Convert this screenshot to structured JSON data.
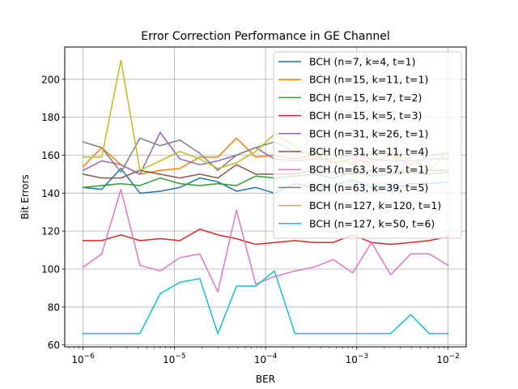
{
  "chart_data": {
    "type": "line",
    "title": "Error Correction Performance in GE Channel",
    "xlabel": "BER",
    "ylabel": "Bit Errors",
    "xscale": "log",
    "xlim": [
      6.3e-07,
      0.0158
    ],
    "ylim": [
      59,
      217
    ],
    "grid": true,
    "legend_position": "top-right",
    "x": [
      1e-06,
      1.6e-06,
      2.6e-06,
      4.2e-06,
      7e-06,
      1.15e-05,
      1.9e-05,
      3e-05,
      4.8e-05,
      7.8e-05,
      0.000125,
      0.00021,
      0.00034,
      0.00055,
      0.0009,
      0.00145,
      0.00235,
      0.0039,
      0.0062,
      0.01
    ],
    "x_ticks": [
      {
        "value": 1e-06,
        "base": "10",
        "exp": "−6"
      },
      {
        "value": 1e-05,
        "base": "10",
        "exp": "−5"
      },
      {
        "value": 0.0001,
        "base": "10",
        "exp": "−4"
      },
      {
        "value": 0.001,
        "base": "10",
        "exp": "−3"
      },
      {
        "value": 0.01,
        "base": "10",
        "exp": "−2"
      }
    ],
    "y_ticks": [
      "60",
      "80",
      "100",
      "120",
      "140",
      "160",
      "180",
      "200"
    ],
    "series": [
      {
        "name": "BCH (n=7, k=4, t=1)",
        "color": "#1f77b4",
        "values": [
          143,
          142,
          153,
          140,
          141,
          143,
          148,
          146,
          141,
          143,
          140,
          145,
          143,
          144,
          147,
          143,
          142,
          145,
          145,
          146
        ]
      },
      {
        "name": "BCH (n=15, k=11, t=1)",
        "color": "#ff7f0e",
        "values": [
          154,
          164,
          155,
          150,
          152,
          153,
          159,
          159,
          169,
          159,
          160,
          158,
          160,
          156,
          158,
          156,
          160,
          155,
          160,
          161
        ]
      },
      {
        "name": "BCH (n=15, k=7, t=2)",
        "color": "#2ca02c",
        "values": [
          143,
          144,
          145,
          144,
          148,
          145,
          144,
          145,
          144,
          149,
          148,
          149,
          150,
          148,
          151,
          149,
          150,
          151,
          150,
          151
        ]
      },
      {
        "name": "BCH (n=15, k=5, t=3)",
        "color": "#d62728",
        "values": [
          115,
          115,
          118,
          115,
          116,
          115,
          121,
          118,
          116,
          113,
          114,
          115,
          114,
          114,
          118,
          114,
          113,
          114,
          115,
          117
        ]
      },
      {
        "name": "BCH (n=31, k=26, t=1)",
        "color": "#9467bd",
        "values": [
          152,
          157,
          155,
          150,
          172,
          158,
          155,
          157,
          160,
          164,
          158,
          157,
          158,
          158,
          160,
          158,
          157,
          157,
          158,
          158
        ]
      },
      {
        "name": "BCH (n=31, k=11, t=4)",
        "color": "#8c564b",
        "values": [
          150,
          148,
          148,
          152,
          150,
          148,
          150,
          148,
          155,
          150,
          150,
          150,
          152,
          151,
          150,
          152,
          151,
          152,
          152,
          152
        ]
      },
      {
        "name": "BCH (n=63, k=57, t=1)",
        "color": "#e377c2",
        "values": [
          101,
          108,
          142,
          102,
          99,
          106,
          108,
          88,
          131,
          92,
          96,
          99,
          101,
          105,
          98,
          114,
          97,
          108,
          108,
          102
        ]
      },
      {
        "name": "BCH (n=63, k=39, t=5)",
        "color": "#7f7f7f",
        "values": [
          167,
          164,
          151,
          169,
          165,
          168,
          161,
          152,
          160,
          164,
          167,
          162,
          161,
          160,
          160,
          161,
          161,
          160,
          160,
          161
        ]
      },
      {
        "name": "BCH (n=127, k=120, t=1)",
        "color": "#bcbd22",
        "values": [
          159,
          159,
          210,
          152,
          157,
          162,
          158,
          153,
          156,
          162,
          171,
          165,
          159,
          160,
          155,
          162,
          160,
          158,
          152,
          162
        ]
      },
      {
        "name": "BCH (n=127, k=50, t=6)",
        "color": "#17becf",
        "values": [
          66,
          66,
          66,
          66,
          87,
          93,
          95,
          66,
          91,
          91,
          99,
          66,
          66,
          66,
          66,
          66,
          66,
          76,
          66,
          66
        ]
      }
    ]
  }
}
